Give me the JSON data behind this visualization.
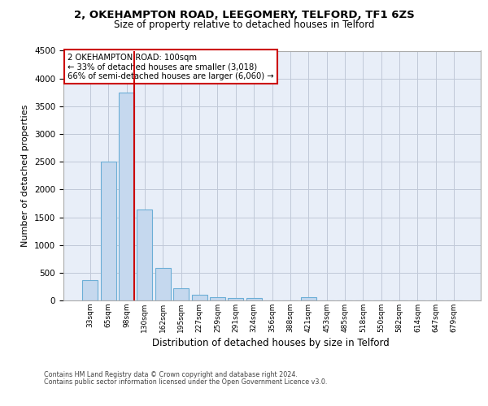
{
  "title_line1": "2, OKEHAMPTON ROAD, LEEGOMERY, TELFORD, TF1 6ZS",
  "title_line2": "Size of property relative to detached houses in Telford",
  "xlabel": "Distribution of detached houses by size in Telford",
  "ylabel": "Number of detached properties",
  "footer_line1": "Contains HM Land Registry data © Crown copyright and database right 2024.",
  "footer_line2": "Contains public sector information licensed under the Open Government Licence v3.0.",
  "annotation_line1": "2 OKEHAMPTON ROAD: 100sqm",
  "annotation_line2": "← 33% of detached houses are smaller (3,018)",
  "annotation_line3": "66% of semi-detached houses are larger (6,060) →",
  "bar_labels": [
    "33sqm",
    "65sqm",
    "98sqm",
    "130sqm",
    "162sqm",
    "195sqm",
    "227sqm",
    "259sqm",
    "291sqm",
    "324sqm",
    "356sqm",
    "388sqm",
    "421sqm",
    "453sqm",
    "485sqm",
    "518sqm",
    "550sqm",
    "582sqm",
    "614sqm",
    "647sqm",
    "679sqm"
  ],
  "bar_values": [
    370,
    2500,
    3750,
    1640,
    590,
    220,
    100,
    60,
    40,
    40,
    0,
    0,
    60,
    0,
    0,
    0,
    0,
    0,
    0,
    0,
    0
  ],
  "bar_color": "#c5d8ee",
  "bar_edge_color": "#6baed6",
  "redline_index": 2,
  "redline_color": "#cc0000",
  "ylim_max": 4500,
  "yticks": [
    0,
    500,
    1000,
    1500,
    2000,
    2500,
    3000,
    3500,
    4000,
    4500
  ],
  "bg_color": "#e8eef8",
  "grid_color": "#c0c8d8",
  "ann_box_color": "#cc0000",
  "ann_bg_color": "#ffffff"
}
